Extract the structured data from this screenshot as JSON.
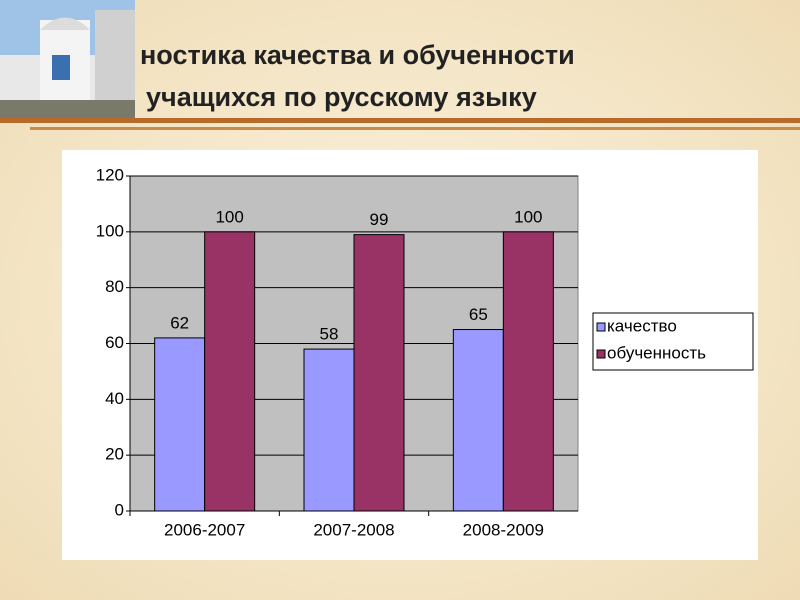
{
  "chart_data": {
    "type": "bar",
    "title": [
      "ностика качества и обученности",
      "учащихся по русскому языку"
    ],
    "categories": [
      "2006-2007",
      "2007-2008",
      "2008-2009"
    ],
    "series": [
      {
        "name": "качество",
        "color": "#9999ff",
        "values": [
          62,
          58,
          65
        ]
      },
      {
        "name": "обученность",
        "color": "#993366",
        "values": [
          100,
          99,
          100
        ]
      }
    ],
    "ylim": [
      0,
      120
    ],
    "yticks": [
      0,
      20,
      40,
      60,
      80,
      100,
      120
    ],
    "grid": true,
    "legend": "right"
  }
}
